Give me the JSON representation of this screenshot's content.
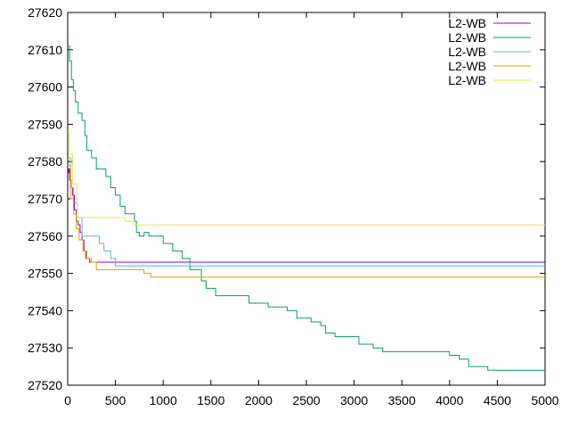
{
  "chart_data": {
    "type": "line",
    "title": "",
    "xlabel": "",
    "ylabel": "",
    "xlim": [
      0,
      5000
    ],
    "ylim": [
      27520,
      27620
    ],
    "xticks": [
      0,
      500,
      1000,
      1500,
      2000,
      2500,
      3000,
      3500,
      4000,
      4500,
      5000
    ],
    "yticks": [
      27520,
      27530,
      27540,
      27550,
      27560,
      27570,
      27580,
      27590,
      27600,
      27610,
      27620
    ],
    "grid": false,
    "legend": "top-right",
    "series": [
      {
        "name": "L2-WB",
        "color": "#9400d3",
        "points": [
          [
            0,
            27577
          ],
          [
            10,
            27578
          ],
          [
            20,
            27575
          ],
          [
            35,
            27573
          ],
          [
            50,
            27571
          ],
          [
            70,
            27567
          ],
          [
            90,
            27564
          ],
          [
            110,
            27563
          ],
          [
            130,
            27561
          ],
          [
            150,
            27559
          ],
          [
            170,
            27556
          ],
          [
            190,
            27554
          ],
          [
            210,
            27554
          ],
          [
            230,
            27553
          ],
          [
            300,
            27553
          ],
          [
            5000,
            27553
          ]
        ]
      },
      {
        "name": "L2-WB",
        "color": "#009e73",
        "points": [
          [
            0,
            27611
          ],
          [
            20,
            27607
          ],
          [
            40,
            27602
          ],
          [
            60,
            27599
          ],
          [
            80,
            27596
          ],
          [
            110,
            27593
          ],
          [
            150,
            27591
          ],
          [
            180,
            27587
          ],
          [
            200,
            27583
          ],
          [
            250,
            27581
          ],
          [
            300,
            27578
          ],
          [
            350,
            27578
          ],
          [
            400,
            27576
          ],
          [
            450,
            27573
          ],
          [
            500,
            27571
          ],
          [
            550,
            27568
          ],
          [
            600,
            27566
          ],
          [
            650,
            27566
          ],
          [
            700,
            27564
          ],
          [
            720,
            27561
          ],
          [
            750,
            27560
          ],
          [
            800,
            27561
          ],
          [
            850,
            27560
          ],
          [
            900,
            27560
          ],
          [
            1000,
            27558
          ],
          [
            1100,
            27556
          ],
          [
            1200,
            27554
          ],
          [
            1280,
            27551
          ],
          [
            1400,
            27548
          ],
          [
            1450,
            27546
          ],
          [
            1550,
            27544
          ],
          [
            1700,
            27544
          ],
          [
            1900,
            27542
          ],
          [
            2000,
            27542
          ],
          [
            2100,
            27541
          ],
          [
            2300,
            27540
          ],
          [
            2400,
            27538
          ],
          [
            2550,
            27537
          ],
          [
            2650,
            27536
          ],
          [
            2700,
            27534
          ],
          [
            2800,
            27533
          ],
          [
            3000,
            27533
          ],
          [
            3050,
            27531
          ],
          [
            3200,
            27530
          ],
          [
            3300,
            27529
          ],
          [
            3500,
            27529
          ],
          [
            3900,
            27529
          ],
          [
            4000,
            27528
          ],
          [
            4100,
            27527
          ],
          [
            4200,
            27525
          ],
          [
            4300,
            27525
          ],
          [
            4400,
            27524
          ],
          [
            5000,
            27524
          ]
        ]
      },
      {
        "name": "L2-WB",
        "color": "#56b4e9",
        "points": [
          [
            0,
            27581
          ],
          [
            30,
            27573
          ],
          [
            60,
            27569
          ],
          [
            100,
            27565
          ],
          [
            150,
            27560
          ],
          [
            200,
            27560
          ],
          [
            300,
            27560
          ],
          [
            330,
            27558
          ],
          [
            380,
            27556
          ],
          [
            450,
            27554
          ],
          [
            500,
            27552
          ],
          [
            5000,
            27552
          ]
        ]
      },
      {
        "name": "L2-WB",
        "color": "#e69f00",
        "points": [
          [
            0,
            27579
          ],
          [
            30,
            27570
          ],
          [
            60,
            27566
          ],
          [
            90,
            27562
          ],
          [
            120,
            27559
          ],
          [
            160,
            27556
          ],
          [
            200,
            27554
          ],
          [
            250,
            27553
          ],
          [
            300,
            27551
          ],
          [
            400,
            27551
          ],
          [
            500,
            27551
          ],
          [
            700,
            27551
          ],
          [
            800,
            27550
          ],
          [
            870,
            27549
          ],
          [
            1200,
            27549
          ],
          [
            5000,
            27549
          ]
        ]
      },
      {
        "name": "L2-WB",
        "color": "#f0e442",
        "points": [
          [
            0,
            27588
          ],
          [
            20,
            27582
          ],
          [
            50,
            27574
          ],
          [
            100,
            27565
          ],
          [
            130,
            27565
          ],
          [
            300,
            27565
          ],
          [
            550,
            27565
          ],
          [
            600,
            27564
          ],
          [
            650,
            27564
          ],
          [
            700,
            27563
          ],
          [
            5000,
            27563
          ]
        ]
      }
    ]
  }
}
